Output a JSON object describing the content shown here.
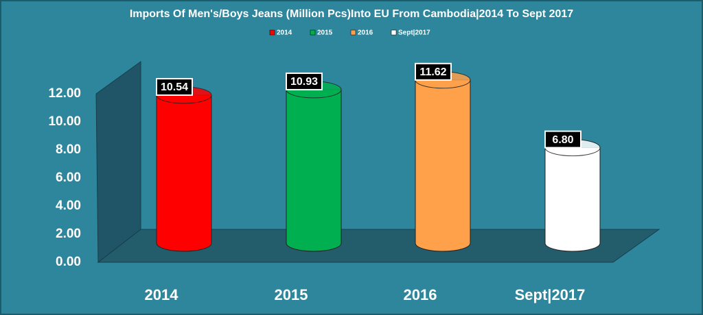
{
  "chart_data": {
    "type": "cylinder-bar",
    "title": "Imports Of Men's/Boys Jeans (Million Pcs)Into EU From Cambodia|2014 To Sept 2017",
    "categories": [
      "2014",
      "2015",
      "2016",
      "Sept|2017"
    ],
    "values": [
      10.54,
      10.93,
      11.62,
      6.8
    ],
    "value_labels": [
      "10.54",
      "10.93",
      "11.62",
      "6.80"
    ],
    "colors": [
      "#ff0000",
      "#00b050",
      "#ffa04a",
      "#ffffff"
    ],
    "ylim": [
      0,
      12
    ],
    "yticks": [
      {
        "value": 0,
        "label": "0.00"
      },
      {
        "value": 2,
        "label": "2.00"
      },
      {
        "value": 4,
        "label": "4.00"
      },
      {
        "value": 6,
        "label": "6.00"
      },
      {
        "value": 8,
        "label": "8.00"
      },
      {
        "value": 10,
        "label": "10.00"
      },
      {
        "value": 12,
        "label": "12.00"
      }
    ],
    "legend": true
  }
}
